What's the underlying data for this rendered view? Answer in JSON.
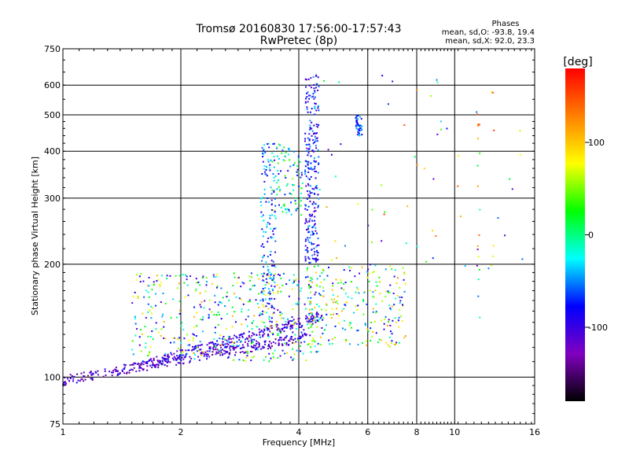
{
  "chart_data": {
    "type": "scatter",
    "title": "Tromsø 20160830 17:56:00-17:57:43",
    "subtitle": "RwPretec (8p)",
    "xlabel": "Frequency [MHz]",
    "ylabel": "Stationary phase Virtual Height [km]",
    "x_scale": "log",
    "y_scale": "log",
    "xlim": [
      1,
      16
    ],
    "ylim": [
      75,
      750
    ],
    "x_ticks": [
      1,
      2,
      4,
      6,
      8,
      10,
      16
    ],
    "y_ticks": [
      75,
      100,
      200,
      300,
      400,
      500,
      600,
      750
    ],
    "grid": true,
    "annotation": {
      "title": "Phases",
      "line1": "mean, sd,O: -93.8, 19.4",
      "line2": "mean, sd,X:  92.0, 23.3"
    },
    "colorbar": {
      "label": "[deg]",
      "range": [
        -180,
        180
      ],
      "ticks": [
        100,
        0,
        -100
      ],
      "colors": [
        "#000000",
        "#8000c0",
        "#0000ff",
        "#00ffff",
        "#00ff00",
        "#ffff00",
        "#ff8000",
        "#ff0000"
      ]
    },
    "series": [
      {
        "trace": "lower-dense-band",
        "x_range": [
          1.0,
          4.2
        ],
        "height_start": 98,
        "height_end": 128,
        "phase_range": [
          -150,
          -80
        ],
        "points": 300
      },
      {
        "trace": "middle-band",
        "x_range": [
          1.6,
          4.6
        ],
        "height_start": 108,
        "height_end": 145,
        "phase_range": [
          -140,
          -60
        ],
        "points": 280
      },
      {
        "trace": "scattered-cloud",
        "x_range": [
          1.5,
          4.5
        ],
        "height_range": [
          110,
          190
        ],
        "phase_range": [
          -120,
          110
        ],
        "points": 450
      },
      {
        "trace": "vertical-column-3.3",
        "x_range": [
          3.2,
          3.5
        ],
        "height_range": [
          140,
          420
        ],
        "phase_range": [
          -110,
          -20
        ],
        "points": 150
      },
      {
        "trace": "vertical-column-4.3",
        "x_range": [
          4.15,
          4.5
        ],
        "height_range": [
          200,
          640
        ],
        "phase_range": [
          -120,
          -40
        ],
        "points": 260
      },
      {
        "trace": "upper-branch",
        "x_range": [
          3.4,
          4.1
        ],
        "height_range": [
          270,
          420
        ],
        "phase_range": [
          -110,
          60
        ],
        "points": 100
      },
      {
        "trace": "mid-cluster-4-7",
        "x_range": [
          4.2,
          7.5
        ],
        "height_range": [
          120,
          200
        ],
        "phase_range": [
          -110,
          120
        ],
        "points": 260
      },
      {
        "trace": "cluster-5.7",
        "x_range": [
          5.6,
          5.8
        ],
        "height_range": [
          440,
          500
        ],
        "phase_range": [
          -100,
          -30
        ],
        "points": 40
      },
      {
        "trace": "sparse-high",
        "x_range": [
          4.5,
          15
        ],
        "height_range": [
          180,
          650
        ],
        "phase_range": [
          -120,
          160
        ],
        "points": 60
      },
      {
        "trace": "column-11.5",
        "x_range": [
          11.4,
          11.6
        ],
        "height_range": [
          105,
          520
        ],
        "phase_range": [
          -180,
          180
        ],
        "points": 16
      },
      {
        "trace": "column-12.5",
        "x_range": [
          12.4,
          12.6
        ],
        "height_range": [
          150,
          640
        ],
        "phase_range": [
          60,
          160
        ],
        "points": 6
      }
    ]
  }
}
